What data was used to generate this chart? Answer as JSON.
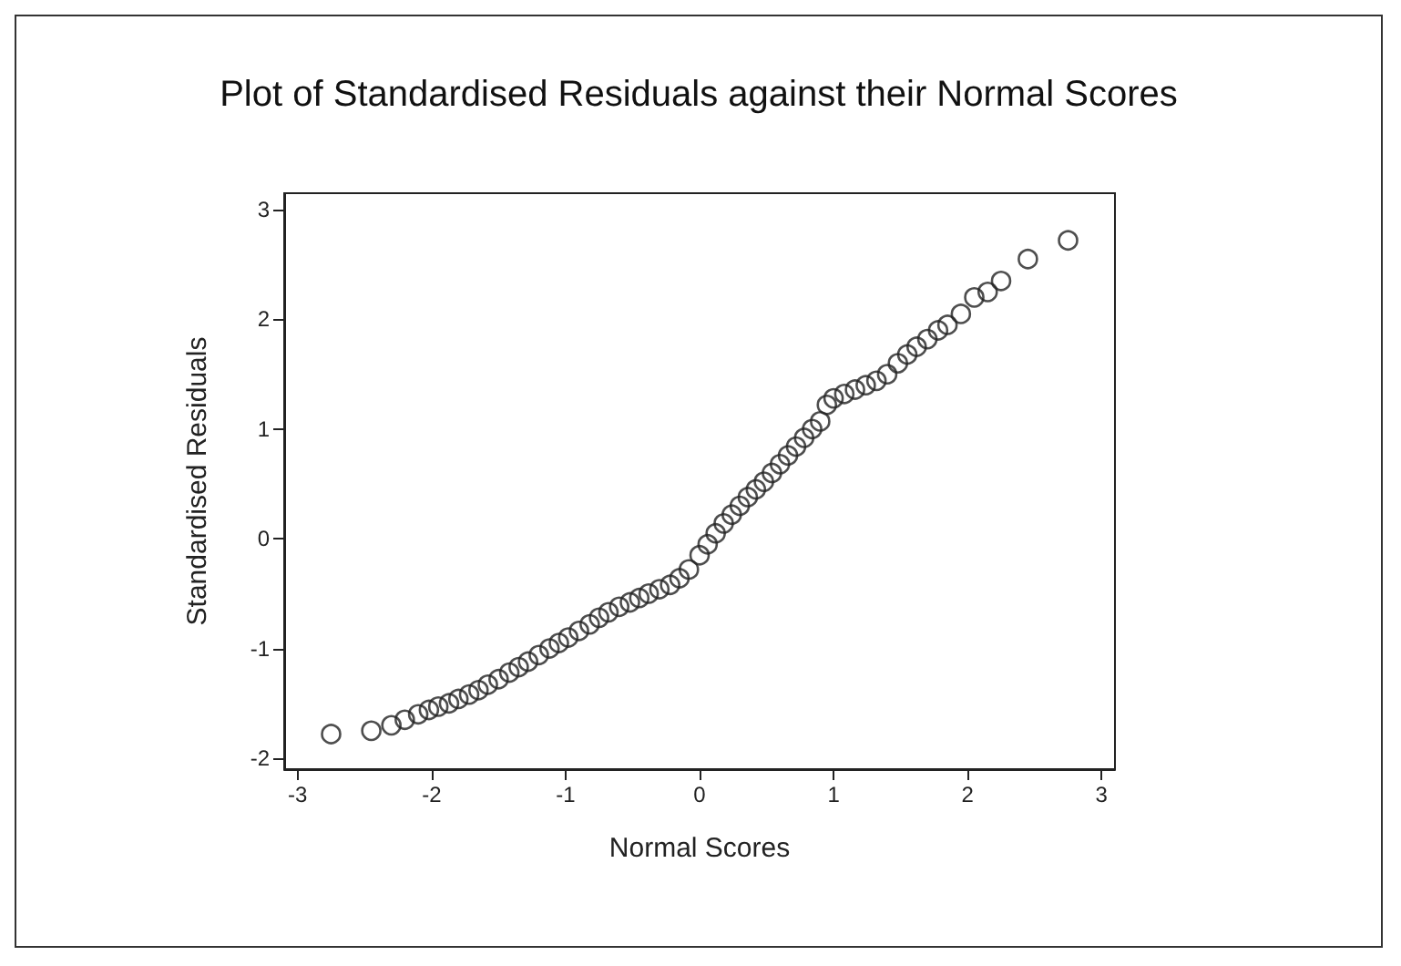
{
  "chart_data": {
    "type": "scatter",
    "title": "Plot of Standardised Residuals against their Normal Scores",
    "xlabel": "Normal Scores",
    "ylabel": "Standardised Residuals",
    "x": [
      -2.75,
      -2.45,
      -2.3,
      -2.2,
      -2.1,
      -2.02,
      -1.95,
      -1.87,
      -1.8,
      -1.72,
      -1.65,
      -1.58,
      -1.5,
      -1.42,
      -1.35,
      -1.28,
      -1.2,
      -1.12,
      -1.05,
      -0.98,
      -0.9,
      -0.82,
      -0.75,
      -0.68,
      -0.6,
      -0.52,
      -0.45,
      -0.38,
      -0.3,
      -0.22,
      -0.15,
      -0.08,
      0,
      0.06,
      0.12,
      0.18,
      0.24,
      0.3,
      0.36,
      0.42,
      0.48,
      0.54,
      0.6,
      0.66,
      0.72,
      0.78,
      0.84,
      0.9,
      0.95,
      1.0,
      1.08,
      1.16,
      1.24,
      1.32,
      1.4,
      1.48,
      1.55,
      1.62,
      1.7,
      1.78,
      1.85,
      1.95,
      2.05,
      2.15,
      2.25,
      2.45,
      2.75
    ],
    "series": [
      {
        "color": "#222222",
        "values": [
          -1.78,
          -1.75,
          -1.7,
          -1.65,
          -1.6,
          -1.56,
          -1.53,
          -1.5,
          -1.46,
          -1.42,
          -1.38,
          -1.33,
          -1.28,
          -1.22,
          -1.17,
          -1.12,
          -1.06,
          -1.0,
          -0.95,
          -0.9,
          -0.84,
          -0.78,
          -0.72,
          -0.67,
          -0.62,
          -0.58,
          -0.54,
          -0.5,
          -0.46,
          -0.42,
          -0.36,
          -0.28,
          -0.15,
          -0.05,
          0.05,
          0.14,
          0.22,
          0.3,
          0.38,
          0.45,
          0.52,
          0.6,
          0.68,
          0.76,
          0.84,
          0.92,
          1.0,
          1.07,
          1.22,
          1.28,
          1.32,
          1.36,
          1.4,
          1.44,
          1.5,
          1.6,
          1.68,
          1.75,
          1.82,
          1.9,
          1.95,
          2.05,
          2.2,
          2.25,
          2.35,
          2.55,
          2.72
        ]
      }
    ],
    "xlim": [
      -3.1,
      3.1
    ],
    "ylim": [
      -2.1,
      3.15
    ],
    "xticks": [
      -3,
      -2,
      -1,
      0,
      1,
      2,
      3
    ],
    "yticks": [
      -2,
      -1,
      0,
      1,
      2,
      3
    ],
    "grid": false,
    "marker": "circle"
  }
}
